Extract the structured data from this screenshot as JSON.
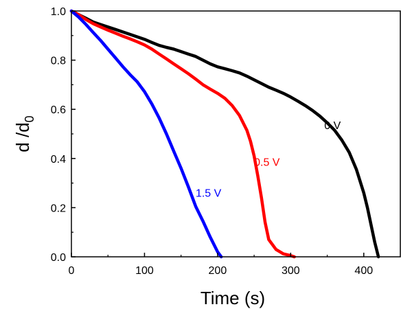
{
  "chart_data": {
    "type": "line",
    "title": "",
    "xlabel": "Time (s)",
    "ylabel_main": "d /d",
    "ylabel_sub": "0",
    "xlim": [
      0,
      450
    ],
    "ylim": [
      0,
      1.0
    ],
    "xticks": [
      0,
      100,
      200,
      300,
      400
    ],
    "yticks": [
      0.0,
      0.2,
      0.4,
      0.6,
      0.8,
      1.0
    ],
    "xtick_labels": [
      "0",
      "100",
      "200",
      "300",
      "400"
    ],
    "ytick_labels": [
      "0.0",
      "0.2",
      "0.4",
      "0.6",
      "0.8",
      "1.0"
    ],
    "grid": false,
    "series": [
      {
        "label": "0 V",
        "label_at": [
          346,
          0.52
        ],
        "color": "#000000",
        "points": [
          [
            0,
            1.0
          ],
          [
            10,
            0.985
          ],
          [
            20,
            0.97
          ],
          [
            30,
            0.955
          ],
          [
            40,
            0.945
          ],
          [
            50,
            0.935
          ],
          [
            60,
            0.925
          ],
          [
            70,
            0.915
          ],
          [
            80,
            0.905
          ],
          [
            90,
            0.895
          ],
          [
            100,
            0.885
          ],
          [
            110,
            0.872
          ],
          [
            120,
            0.86
          ],
          [
            130,
            0.852
          ],
          [
            140,
            0.845
          ],
          [
            150,
            0.835
          ],
          [
            160,
            0.825
          ],
          [
            170,
            0.815
          ],
          [
            180,
            0.8
          ],
          [
            190,
            0.785
          ],
          [
            200,
            0.773
          ],
          [
            210,
            0.765
          ],
          [
            220,
            0.757
          ],
          [
            230,
            0.748
          ],
          [
            240,
            0.735
          ],
          [
            250,
            0.72
          ],
          [
            260,
            0.705
          ],
          [
            270,
            0.69
          ],
          [
            280,
            0.678
          ],
          [
            290,
            0.665
          ],
          [
            300,
            0.65
          ],
          [
            310,
            0.633
          ],
          [
            320,
            0.615
          ],
          [
            330,
            0.595
          ],
          [
            340,
            0.572
          ],
          [
            350,
            0.545
          ],
          [
            360,
            0.515
          ],
          [
            370,
            0.475
          ],
          [
            380,
            0.425
          ],
          [
            390,
            0.355
          ],
          [
            400,
            0.26
          ],
          [
            405,
            0.2
          ],
          [
            410,
            0.13
          ],
          [
            415,
            0.06
          ],
          [
            420,
            0.0
          ]
        ]
      },
      {
        "label": "0.5 V",
        "label_at": [
          250,
          0.37
        ],
        "color": "#ff0000",
        "points": [
          [
            0,
            1.0
          ],
          [
            10,
            0.985
          ],
          [
            20,
            0.965
          ],
          [
            30,
            0.948
          ],
          [
            40,
            0.935
          ],
          [
            50,
            0.922
          ],
          [
            60,
            0.91
          ],
          [
            70,
            0.898
          ],
          [
            80,
            0.887
          ],
          [
            90,
            0.875
          ],
          [
            100,
            0.862
          ],
          [
            110,
            0.845
          ],
          [
            120,
            0.825
          ],
          [
            130,
            0.805
          ],
          [
            140,
            0.785
          ],
          [
            150,
            0.765
          ],
          [
            160,
            0.745
          ],
          [
            170,
            0.723
          ],
          [
            180,
            0.7
          ],
          [
            190,
            0.682
          ],
          [
            200,
            0.665
          ],
          [
            210,
            0.645
          ],
          [
            220,
            0.615
          ],
          [
            230,
            0.575
          ],
          [
            240,
            0.515
          ],
          [
            245,
            0.47
          ],
          [
            250,
            0.41
          ],
          [
            255,
            0.33
          ],
          [
            260,
            0.24
          ],
          [
            265,
            0.14
          ],
          [
            270,
            0.07
          ],
          [
            280,
            0.03
          ],
          [
            290,
            0.012
          ],
          [
            300,
            0.005
          ],
          [
            305,
            0.0
          ]
        ]
      },
      {
        "label": "1.5 V",
        "label_at": [
          170,
          0.245
        ],
        "color": "#0000ff",
        "points": [
          [
            0,
            1.0
          ],
          [
            10,
            0.975
          ],
          [
            20,
            0.945
          ],
          [
            30,
            0.912
          ],
          [
            40,
            0.88
          ],
          [
            50,
            0.845
          ],
          [
            60,
            0.81
          ],
          [
            70,
            0.775
          ],
          [
            80,
            0.742
          ],
          [
            90,
            0.712
          ],
          [
            100,
            0.672
          ],
          [
            110,
            0.622
          ],
          [
            120,
            0.565
          ],
          [
            130,
            0.5
          ],
          [
            140,
            0.43
          ],
          [
            150,
            0.36
          ],
          [
            160,
            0.285
          ],
          [
            170,
            0.205
          ],
          [
            180,
            0.145
          ],
          [
            190,
            0.08
          ],
          [
            200,
            0.02
          ],
          [
            205,
            0.0
          ]
        ]
      }
    ]
  }
}
